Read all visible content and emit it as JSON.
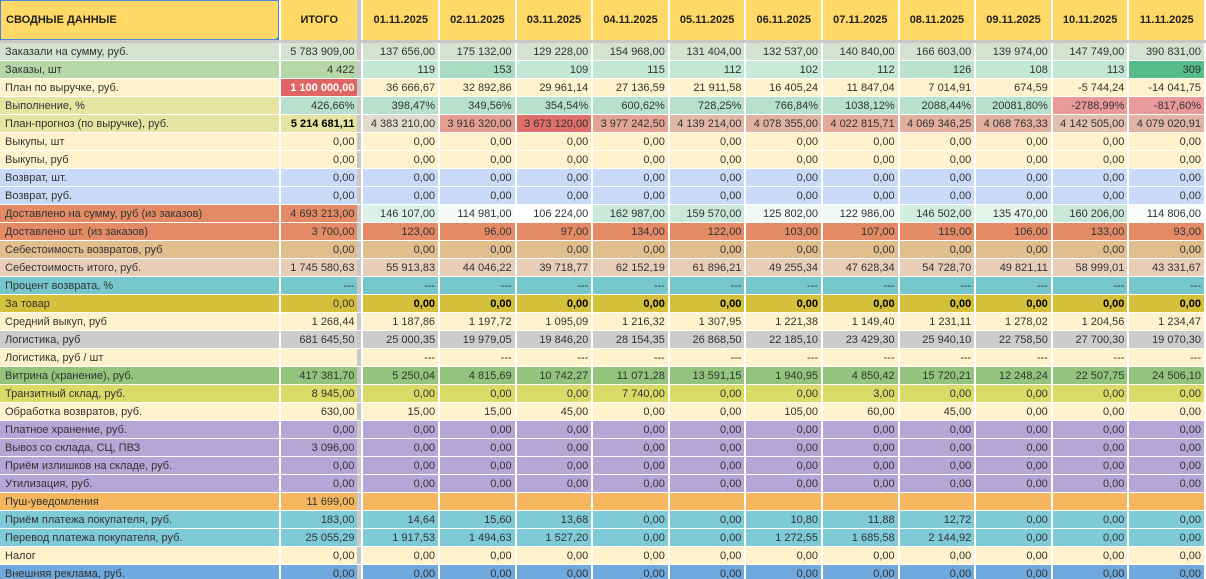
{
  "header": {
    "label": "СВОДНЫЕ ДАННЫЕ",
    "total": "ИТОГО",
    "dates": [
      "01.11.2025",
      "02.11.2025",
      "03.11.2025",
      "04.11.2025",
      "05.11.2025",
      "06.11.2025",
      "07.11.2025",
      "08.11.2025",
      "09.11.2025",
      "10.11.2025",
      "11.11.2025"
    ]
  },
  "colors": {
    "header": "#ffd966",
    "selection": "#4a86e8"
  },
  "rows": [
    {
      "label": "Заказали на сумму, руб.",
      "total": "5 783 909,00",
      "bg": "#d3e3cf",
      "values": [
        "137 656,00",
        "175 132,00",
        "129 228,00",
        "154 968,00",
        "131 404,00",
        "132 537,00",
        "140 840,00",
        "166 603,00",
        "139 974,00",
        "147 749,00",
        "390 831,00"
      ]
    },
    {
      "label": "Заказы, шт",
      "total": "4 422",
      "bg": "#b6d7a8",
      "values": [
        "119",
        "153",
        "109",
        "115",
        "112",
        "102",
        "112",
        "126",
        "108",
        "113",
        "309"
      ],
      "cell_bg": [
        "#c3e7d6",
        "#a9dcc3",
        "#c4e8d7",
        "#c2e7d5",
        "#c3e7d6",
        "#c6e9d8",
        "#c3e7d6",
        "#b9e3cf",
        "#c4e8d7",
        "#c3e7d6",
        "#57bb8a"
      ]
    },
    {
      "label": "План по выручке, руб.",
      "total": "1 100 000,00",
      "bg": "#fff2cc",
      "total_bg": "#e06666",
      "total_color": "#ffffff",
      "total_bold": true,
      "values": [
        "36 666,67",
        "32 892,86",
        "29 961,14",
        "27 136,59",
        "21 911,58",
        "16 405,24",
        "11 847,04",
        "7 014,91",
        "674,59",
        "-5 744,24",
        "-14 041,75"
      ]
    },
    {
      "label": "Выполнение, %",
      "total": "426,66%",
      "bg": "#e5e4a0",
      "total_bg": "#b7e1cd",
      "cell_default": "#b7e1cd",
      "values": [
        "398,47%",
        "349,56%",
        "354,54%",
        "600,62%",
        "728,25%",
        "766,84%",
        "1038,12%",
        "2088,44%",
        "20081,80%",
        "-2788,99%",
        "-817,60%"
      ],
      "cell_bg": [
        "#b7e1cd",
        "#b7e1cd",
        "#b7e1cd",
        "#b7e1cd",
        "#b7e1cd",
        "#b7e1cd",
        "#b7e1cd",
        "#b7e1cd",
        "#b7e1cd",
        "#ea9999",
        "#ea9999"
      ]
    },
    {
      "label": "План-прогноз (по выручке), руб.",
      "total": "5 214 681,11",
      "bg": "#e5e4a0",
      "total_bold": true,
      "values": [
        "4 383 210,00",
        "3 916 320,00",
        "3 673 120,00",
        "3 977 242,50",
        "4 139 214,00",
        "4 078 355,00",
        "4 022 815,71",
        "4 069 346,25",
        "4 068 763,33",
        "4 142 505,00",
        "4 079 020,91"
      ],
      "cell_bg": [
        "#e2dacb",
        "#e49e91",
        "#e06e69",
        "#e3a394",
        "#e1b8a8",
        "#e1b2a2",
        "#e3a898",
        "#e2ae9e",
        "#e2af9f",
        "#e1c0b0",
        "#e1b5a5"
      ]
    },
    {
      "label": "Выкупы, шт",
      "total": "0,00",
      "bg": "#fff2cc",
      "values": [
        "0,00",
        "0,00",
        "0,00",
        "0,00",
        "0,00",
        "0,00",
        "0,00",
        "0,00",
        "0,00",
        "0,00",
        "0,00"
      ]
    },
    {
      "label": "Выкупы, руб",
      "total": "0,00",
      "bg": "#fff2cc",
      "values": [
        "0,00",
        "0,00",
        "0,00",
        "0,00",
        "0,00",
        "0,00",
        "0,00",
        "0,00",
        "0,00",
        "0,00",
        "0,00"
      ]
    },
    {
      "label": "Возврат, шт.",
      "total": "0,00",
      "bg": "#c9daf8",
      "values": [
        "0,00",
        "0,00",
        "0,00",
        "0,00",
        "0,00",
        "0,00",
        "0,00",
        "0,00",
        "0,00",
        "0,00",
        "0,00"
      ]
    },
    {
      "label": "Возврат, руб.",
      "total": "0,00",
      "bg": "#c9daf8",
      "values": [
        "0,00",
        "0,00",
        "0,00",
        "0,00",
        "0,00",
        "0,00",
        "0,00",
        "0,00",
        "0,00",
        "0,00",
        "0,00"
      ]
    },
    {
      "label": "Доставлено на сумму, руб (из заказов)",
      "total": "4 693 213,00",
      "bg": "#e48b65",
      "values": [
        "146 107,00",
        "114 981,00",
        "106 224,00",
        "162 987,00",
        "159 570,00",
        "125 802,00",
        "122 986,00",
        "146 502,00",
        "135 470,00",
        "160 206,00",
        "114 806,00"
      ],
      "cell_bg": [
        "#dcf1e7",
        "#f6fbf9",
        "#ffffff",
        "#c8e8d8",
        "#cbe9da",
        "#eff8f3",
        "#f2f9f5",
        "#d3ede0",
        "#e3f4eb",
        "#c9e8d8",
        "#f8fcfa"
      ]
    },
    {
      "label": "Доставлено шт. (из заказов)",
      "total": "3 700,00",
      "bg": "#e48b65",
      "values": [
        "123,00",
        "96,00",
        "97,00",
        "134,00",
        "122,00",
        "103,00",
        "107,00",
        "119,00",
        "106,00",
        "133,00",
        "93,00"
      ]
    },
    {
      "label": "Себестоимость возвратов, руб",
      "total": "0,00",
      "bg": "#e0be8e",
      "values": [
        "0,00",
        "0,00",
        "0,00",
        "0,00",
        "0,00",
        "0,00",
        "0,00",
        "0,00",
        "0,00",
        "0,00",
        "0,00"
      ]
    },
    {
      "label": "Себестоимость итого, руб.",
      "total": "1 745 580,63",
      "bg": "#e8cdb8",
      "values": [
        "55 913,83",
        "44 046,22",
        "39 718,77",
        "62 152,19",
        "61 896,21",
        "49 255,34",
        "47 628,34",
        "54 728,70",
        "49 821,11",
        "58 999,01",
        "43 331,67"
      ]
    },
    {
      "label": "Процент возврата, %",
      "total": "---",
      "bg": "#76c7cb",
      "values": [
        "---",
        "---",
        "---",
        "---",
        "---",
        "---",
        "---",
        "---",
        "---",
        "---",
        "---"
      ]
    },
    {
      "label": "За товар",
      "total": "0,00",
      "bg": "#d5c03b",
      "cells_bold": true,
      "values": [
        "0,00",
        "0,00",
        "0,00",
        "0,00",
        "0,00",
        "0,00",
        "0,00",
        "0,00",
        "0,00",
        "0,00",
        "0,00"
      ]
    },
    {
      "label": "Средний выкуп, руб",
      "total": "1 268,44",
      "bg": "#fff2cc",
      "values": [
        "1 187,86",
        "1 197,72",
        "1 095,09",
        "1 216,32",
        "1 307,95",
        "1 221,38",
        "1 149,40",
        "1 231,11",
        "1 278,02",
        "1 204,56",
        "1 234,47"
      ]
    },
    {
      "label": "Логистика, руб",
      "total": "681 645,50",
      "bg": "#cccccc",
      "values": [
        "25 000,35",
        "19 979,05",
        "19 846,20",
        "28 154,35",
        "26 868,50",
        "22 185,10",
        "23 429,30",
        "25 940,10",
        "22 758,50",
        "27 700,30",
        "19 070,30"
      ]
    },
    {
      "label": "Логистика, руб / шт",
      "total": "",
      "bg": "#fff2cc",
      "values": [
        "---",
        "---",
        "---",
        "---",
        "---",
        "---",
        "---",
        "---",
        "---",
        "---",
        "---"
      ]
    },
    {
      "label": "Витрина (хранение), руб.",
      "total": "417 381,70",
      "bg": "#93c47d",
      "values": [
        "5 250,04",
        "4 815,69",
        "10 742,27",
        "11 071,28",
        "13 591,15",
        "1 940,95",
        "4 850,42",
        "15 720,21",
        "12 248,24",
        "22 507,75",
        "24 506,10"
      ]
    },
    {
      "label": "Транзитный склад, руб.",
      "total": "8 945,00",
      "bg": "#d9db66",
      "values": [
        "0,00",
        "0,00",
        "0,00",
        "7 740,00",
        "0,00",
        "0,00",
        "3,00",
        "0,00",
        "0,00",
        "0,00",
        "0,00"
      ]
    },
    {
      "label": "Обработка возвратов, руб.",
      "total": "630,00",
      "bg": "#fff2cc",
      "values": [
        "15,00",
        "15,00",
        "45,00",
        "0,00",
        "0,00",
        "105,00",
        "60,00",
        "45,00",
        "0,00",
        "0,00",
        "0,00"
      ]
    },
    {
      "label": "Платное хранение, руб.",
      "total": "0,00",
      "bg": "#b4a7d6",
      "values": [
        "0,00",
        "0,00",
        "0,00",
        "0,00",
        "0,00",
        "0,00",
        "0,00",
        "0,00",
        "0,00",
        "0,00",
        "0,00"
      ]
    },
    {
      "label": "Вывоз со склада, СЦ, ПВЗ",
      "total": "3 096,00",
      "bg": "#b4a7d6",
      "values": [
        "0,00",
        "0,00",
        "0,00",
        "0,00",
        "0,00",
        "0,00",
        "0,00",
        "0,00",
        "0,00",
        "0,00",
        "0,00"
      ]
    },
    {
      "label": "Приём излишков на складе, руб.",
      "total": "0,00",
      "bg": "#b4a7d6",
      "values": [
        "0,00",
        "0,00",
        "0,00",
        "0,00",
        "0,00",
        "0,00",
        "0,00",
        "0,00",
        "0,00",
        "0,00",
        "0,00"
      ]
    },
    {
      "label": "Утилизация, руб.",
      "total": "0,00",
      "bg": "#b4a7d6",
      "values": [
        "0,00",
        "0,00",
        "0,00",
        "0,00",
        "0,00",
        "0,00",
        "0,00",
        "0,00",
        "0,00",
        "0,00",
        "0,00"
      ]
    },
    {
      "label": "Пуш-уведомления",
      "total": "11 699,00",
      "bg": "#f4b75f",
      "values": [
        "",
        "",
        "",
        "",
        "",
        "",
        "",
        "",
        "",
        "",
        ""
      ]
    },
    {
      "label": "Приём платежа покупателя, руб.",
      "total": "183,00",
      "bg": "#7ecbd7",
      "values": [
        "14,64",
        "15,60",
        "13,68",
        "0,00",
        "0,00",
        "10,80",
        "11,88",
        "12,72",
        "0,00",
        "0,00",
        "0,00"
      ]
    },
    {
      "label": "Перевод платежа покупателя, руб.",
      "total": "25 055,29",
      "bg": "#7ecbd7",
      "values": [
        "1 917,53",
        "1 494,63",
        "1 527,20",
        "0,00",
        "0,00",
        "1 272,55",
        "1 685,58",
        "2 144,92",
        "0,00",
        "0,00",
        "0,00"
      ]
    },
    {
      "label": "Налог",
      "total": "0,00",
      "bg": "#fff2cc",
      "values": [
        "0,00",
        "0,00",
        "0,00",
        "0,00",
        "0,00",
        "0,00",
        "0,00",
        "0,00",
        "0,00",
        "0,00",
        "0,00"
      ]
    },
    {
      "label": "Внешняя реклама, руб.",
      "total": "0,00",
      "bg": "#6fa8dc",
      "values": [
        "0,00",
        "0,00",
        "0,00",
        "0,00",
        "0,00",
        "0,00",
        "0,00",
        "0,00",
        "0,00",
        "0,00",
        "0,00"
      ]
    }
  ]
}
